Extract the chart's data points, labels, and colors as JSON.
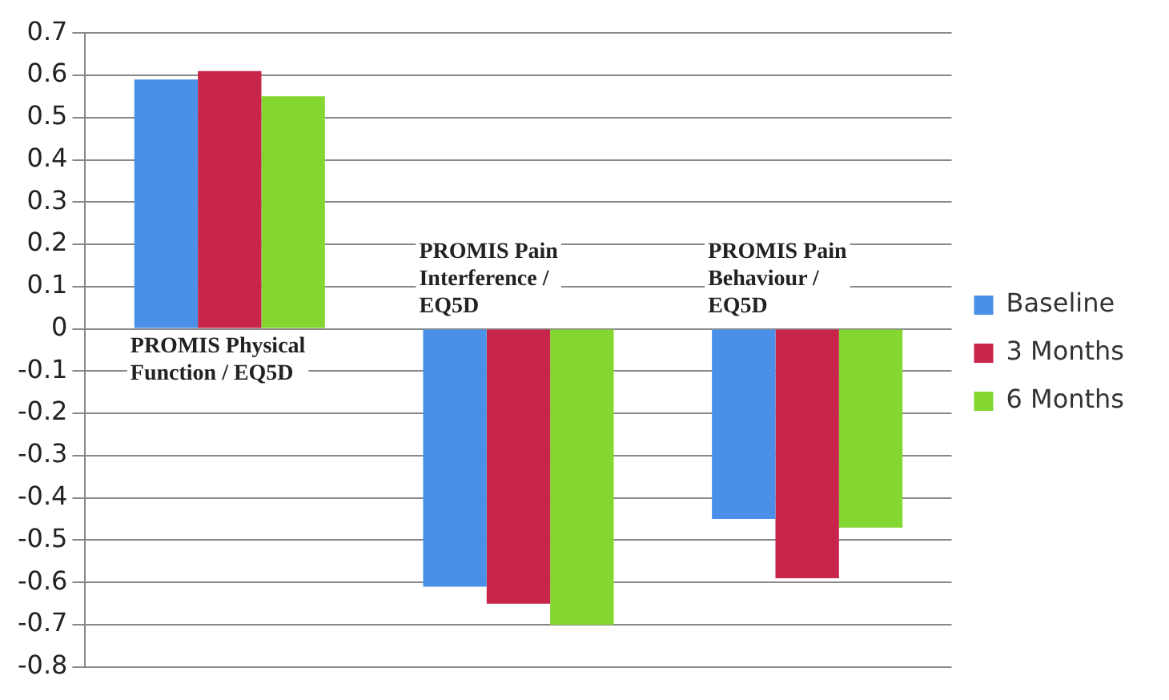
{
  "chart_data": {
    "type": "bar",
    "categories": [
      "PROMIS Physical Function / EQ5D",
      "PROMIS Pain Interference / EQ5D",
      "PROMIS Pain Behaviour / EQ5D"
    ],
    "series": [
      {
        "name": "Baseline",
        "color": "#4a90e8",
        "values": [
          0.59,
          -0.61,
          -0.45
        ]
      },
      {
        "name": "3 Months",
        "color": "#c8254a",
        "values": [
          0.61,
          -0.65,
          -0.59
        ]
      },
      {
        "name": "6 Months",
        "color": "#84d630",
        "values": [
          0.55,
          -0.7,
          -0.47
        ]
      }
    ],
    "ylim": [
      -0.8,
      0.7
    ],
    "yticks": [
      -0.8,
      -0.7,
      -0.6,
      -0.5,
      -0.4,
      -0.3,
      -0.2,
      -0.1,
      0,
      0.1,
      0.2,
      0.3,
      0.4,
      0.5,
      0.6,
      0.7
    ],
    "grid": "y",
    "legend": "right"
  }
}
